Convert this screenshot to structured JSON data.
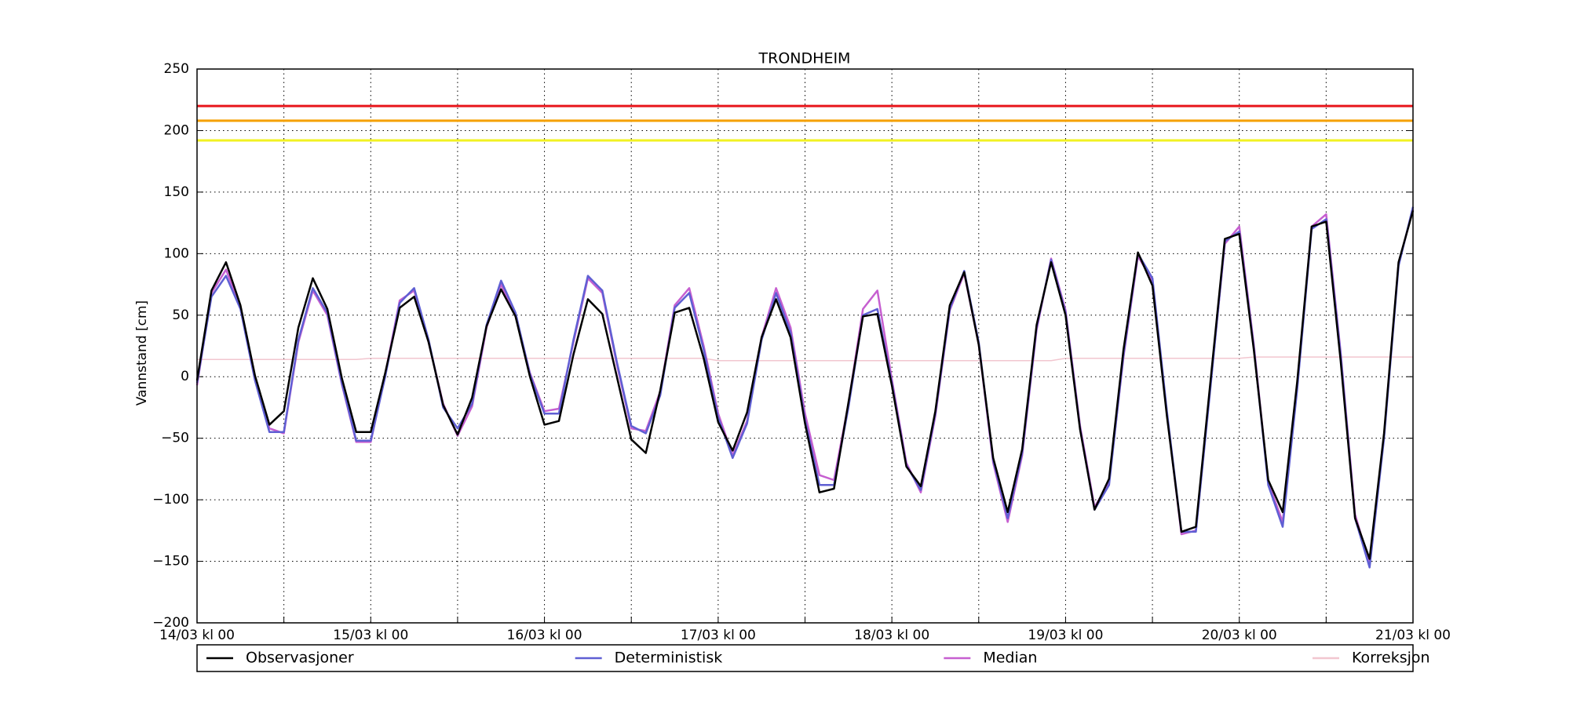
{
  "chart_data": {
    "type": "line",
    "title": "TRONDHEIM",
    "ylabel": "Vannstand [cm]",
    "x": [
      0,
      2,
      4,
      6,
      8,
      10,
      12,
      14,
      16,
      18,
      20,
      22,
      24,
      26,
      28,
      30,
      32,
      34,
      36,
      38,
      40,
      42,
      44,
      46,
      48,
      50,
      52,
      54,
      56,
      58,
      60,
      62,
      64,
      66,
      68,
      70,
      72,
      74,
      76,
      78,
      80,
      82,
      84,
      86,
      88,
      90,
      92,
      94,
      96,
      98,
      100,
      102,
      104,
      106,
      108,
      110,
      112,
      114,
      116,
      118,
      120,
      122,
      124,
      126,
      128,
      130,
      132,
      134,
      136,
      138,
      140,
      142,
      144,
      146,
      148,
      150,
      152,
      154,
      156,
      158,
      160,
      162,
      164,
      166,
      168
    ],
    "xlim": [
      0,
      168
    ],
    "xticks": [
      {
        "value": 0,
        "label": "14/03 kl 00"
      },
      {
        "value": 24,
        "label": "15/03 kl 00"
      },
      {
        "value": 48,
        "label": "16/03 kl 00"
      },
      {
        "value": 72,
        "label": "17/03 kl 00"
      },
      {
        "value": 96,
        "label": "18/03 kl 00"
      },
      {
        "value": 120,
        "label": "19/03 kl 00"
      },
      {
        "value": 144,
        "label": "20/03 kl 00"
      },
      {
        "value": 168,
        "label": "21/03 kl 00"
      }
    ],
    "xticks_minor": [
      12,
      36,
      60,
      84,
      108,
      132,
      156
    ],
    "ylim": [
      -200,
      250
    ],
    "yticks": [
      {
        "value": -200,
        "label": "−200"
      },
      {
        "value": -150,
        "label": "−150"
      },
      {
        "value": -100,
        "label": "−100"
      },
      {
        "value": -50,
        "label": "−50"
      },
      0,
      50,
      100,
      150,
      200,
      250
    ],
    "grid": true,
    "hlines": [
      {
        "value": 220,
        "color": "#e8161b"
      },
      {
        "value": 208,
        "color": "#f5a000"
      },
      {
        "value": 192,
        "color": "#f2f222"
      }
    ],
    "series": [
      {
        "name": "Observasjoner",
        "color": "#000000",
        "values": [
          -3,
          70,
          93,
          58,
          1,
          -39,
          -28,
          40,
          80,
          55,
          -1,
          -45,
          -45,
          3,
          56,
          65,
          28,
          -23,
          -47,
          -17,
          41,
          71,
          49,
          0,
          -39,
          -36,
          18,
          63,
          51,
          0,
          -51,
          -62,
          -11,
          52,
          56,
          15,
          -37,
          -60,
          -29,
          32,
          63,
          32,
          -38,
          -94,
          -91,
          -21,
          49,
          51,
          -7,
          -73,
          -89,
          -28,
          58,
          85,
          26,
          -66,
          -110,
          -59,
          42,
          93,
          50,
          -43,
          -108,
          -83,
          22,
          101,
          74,
          -32,
          -126,
          -122,
          -5,
          112,
          116,
          22,
          -84,
          -110,
          -4,
          122,
          126,
          13,
          -115,
          -148,
          -46,
          93,
          135
        ]
      },
      {
        "name": "Deterministisk",
        "color": "#5f5fd3",
        "values": [
          -5,
          65,
          82,
          55,
          -3,
          -45,
          -45,
          30,
          72,
          52,
          -5,
          -52,
          -52,
          0,
          60,
          72,
          30,
          -25,
          -42,
          -22,
          42,
          78,
          52,
          2,
          -30,
          -30,
          30,
          82,
          70,
          12,
          -40,
          -46,
          -15,
          56,
          68,
          22,
          -33,
          -66,
          -38,
          30,
          68,
          36,
          -35,
          -88,
          -88,
          -25,
          50,
          55,
          -5,
          -72,
          -92,
          -30,
          55,
          86,
          28,
          -68,
          -115,
          -62,
          40,
          95,
          52,
          -42,
          -108,
          -88,
          18,
          100,
          80,
          -28,
          -126,
          -126,
          -10,
          110,
          118,
          24,
          -88,
          -122,
          -10,
          120,
          128,
          18,
          -115,
          -155,
          -50,
          90,
          138
        ]
      },
      {
        "name": "Median",
        "color": "#c65fd0",
        "values": [
          -7,
          68,
          87,
          57,
          -2,
          -42,
          -46,
          28,
          70,
          50,
          -6,
          -53,
          -53,
          2,
          62,
          70,
          28,
          -22,
          -48,
          -24,
          40,
          75,
          50,
          3,
          -28,
          -26,
          28,
          80,
          68,
          10,
          -42,
          -44,
          -12,
          58,
          72,
          25,
          -30,
          -64,
          -36,
          32,
          72,
          40,
          -30,
          -80,
          -84,
          -22,
          55,
          70,
          -2,
          -70,
          -94,
          -32,
          54,
          84,
          26,
          -70,
          -118,
          -64,
          38,
          96,
          54,
          -40,
          -106,
          -86,
          16,
          98,
          78,
          -30,
          -128,
          -125,
          -8,
          108,
          122,
          26,
          -86,
          -118,
          -8,
          122,
          132,
          20,
          -112,
          -152,
          -48,
          92,
          136
        ]
      },
      {
        "name": "Korreksjon",
        "color": "#f2c6cf",
        "values": [
          14,
          14,
          14,
          14,
          14,
          14,
          14,
          14,
          14,
          14,
          14,
          14,
          15,
          15,
          15,
          15,
          15,
          15,
          15,
          15,
          15,
          15,
          15,
          15,
          15,
          15,
          15,
          15,
          15,
          15,
          15,
          15,
          15,
          15,
          15,
          15,
          13,
          13,
          13,
          13,
          13,
          13,
          13,
          13,
          13,
          13,
          13,
          13,
          13,
          13,
          13,
          13,
          13,
          13,
          13,
          13,
          13,
          13,
          13,
          13,
          15,
          15,
          15,
          15,
          15,
          15,
          15,
          15,
          15,
          15,
          15,
          15,
          15,
          16,
          16,
          16,
          16,
          16,
          16,
          16,
          16,
          16,
          16,
          16,
          16
        ]
      }
    ]
  }
}
